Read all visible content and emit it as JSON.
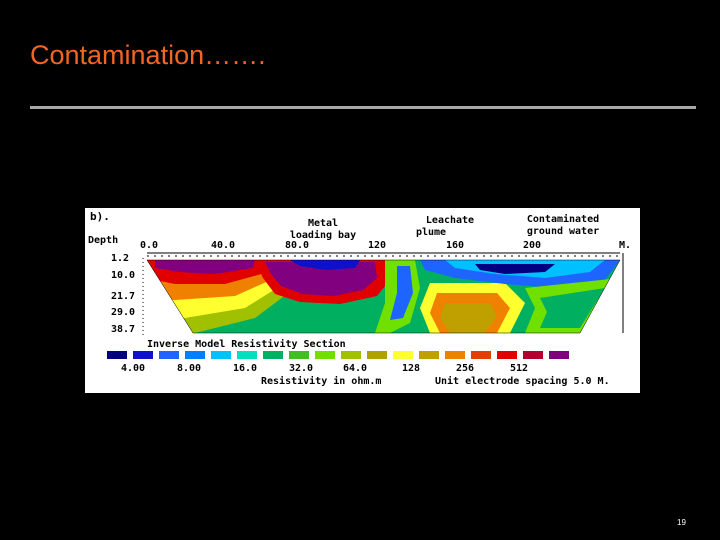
{
  "slide": {
    "title": "Contamination…….",
    "page_number": "19"
  },
  "figure": {
    "panel_label": "b).",
    "depth_label": "Depth",
    "depth_ticks": [
      "1.2",
      "10.0",
      "21.7",
      "29.0",
      "38.7"
    ],
    "x_ticks": [
      "0.0",
      "40.0",
      "80.0",
      "120",
      "160",
      "200"
    ],
    "x_unit": "M.",
    "annotations": {
      "metal_line1": "Metal",
      "metal_line2": "loading bay",
      "leach_line1": "Leachate",
      "leach_line2": "plume",
      "cont_line1": "Contaminated",
      "cont_line2": "ground water"
    },
    "section_title": "Inverse Model Resistivity Section",
    "legend_values": [
      "4.00",
      "8.00",
      "16.0",
      "32.0",
      "64.0",
      "128",
      "256",
      "512"
    ],
    "legend_colors": [
      "#000080",
      "#1010c8",
      "#1e64ff",
      "#00c0ff",
      "#00b060",
      "#70e000",
      "#a0c000",
      "#ffff30",
      "#c0a000",
      "#f08000",
      "#e00000",
      "#b00030",
      "#800080",
      "#500060"
    ],
    "resistivity_label": "Resistivity in ohm.m",
    "spacing_label": "Unit electrode spacing 5.0 M."
  }
}
